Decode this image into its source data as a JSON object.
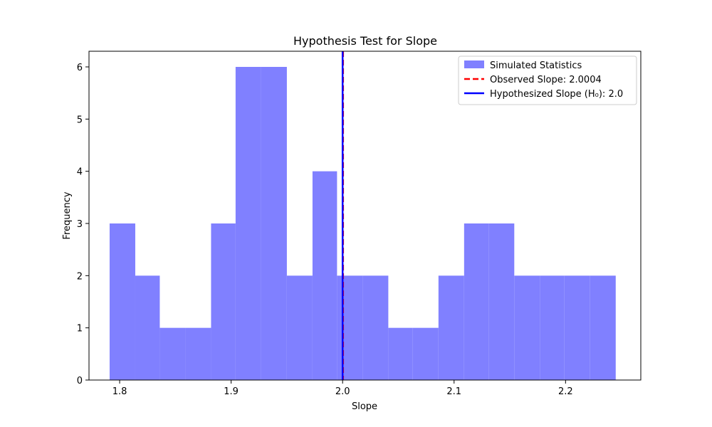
{
  "chart_data": {
    "type": "histogram",
    "title": "Hypothesis Test for Slope",
    "xlabel": "Slope",
    "ylabel": "Frequency",
    "xlim": [
      1.7725,
      2.2675
    ],
    "ylim": [
      0,
      6.3
    ],
    "x_ticks": [
      1.8,
      1.9,
      2.0,
      2.1,
      2.2
    ],
    "x_tick_labels": [
      "1.8",
      "1.9",
      "2.0",
      "2.1",
      "2.2"
    ],
    "y_ticks": [
      0,
      1,
      2,
      3,
      4,
      5,
      6
    ],
    "y_tick_labels": [
      "0",
      "1",
      "2",
      "3",
      "4",
      "5",
      "6"
    ],
    "bins": [
      {
        "x0": 1.791,
        "x1": 1.814,
        "count": 3
      },
      {
        "x0": 1.814,
        "x1": 1.836,
        "count": 2
      },
      {
        "x0": 1.836,
        "x1": 1.859,
        "count": 1
      },
      {
        "x0": 1.859,
        "x1": 1.882,
        "count": 1
      },
      {
        "x0": 1.882,
        "x1": 1.904,
        "count": 3
      },
      {
        "x0": 1.904,
        "x1": 1.927,
        "count": 6
      },
      {
        "x0": 1.927,
        "x1": 1.95,
        "count": 6
      },
      {
        "x0": 1.95,
        "x1": 1.973,
        "count": 2
      },
      {
        "x0": 1.973,
        "x1": 1.995,
        "count": 4
      },
      {
        "x0": 1.995,
        "x1": 2.018,
        "count": 2
      },
      {
        "x0": 2.018,
        "x1": 2.041,
        "count": 2
      },
      {
        "x0": 2.041,
        "x1": 2.063,
        "count": 1
      },
      {
        "x0": 2.063,
        "x1": 2.086,
        "count": 1
      },
      {
        "x0": 2.086,
        "x1": 2.109,
        "count": 2
      },
      {
        "x0": 2.109,
        "x1": 2.131,
        "count": 3
      },
      {
        "x0": 2.131,
        "x1": 2.154,
        "count": 3
      },
      {
        "x0": 2.154,
        "x1": 2.177,
        "count": 2
      },
      {
        "x0": 2.177,
        "x1": 2.199,
        "count": 2
      },
      {
        "x0": 2.199,
        "x1": 2.222,
        "count": 2
      },
      {
        "x0": 2.222,
        "x1": 2.245,
        "count": 2
      }
    ],
    "lines": [
      {
        "name": "Observed Slope: 2.0004",
        "x": 2.0004,
        "color": "#ff0000",
        "style": "dashed"
      },
      {
        "name": "Hypothesized Slope (H₀): 2.0",
        "x": 2.0,
        "color": "#0000ff",
        "style": "solid"
      }
    ],
    "legend": {
      "placement": "top-right",
      "entries": [
        "Simulated Statistics",
        "Observed Slope: 2.0004",
        "Hypothesized Slope (H₀): 2.0"
      ]
    },
    "colors": {
      "bars": "#8080ff",
      "observed": "#ff0000",
      "hypothesized": "#0000ff"
    },
    "grid": false
  }
}
